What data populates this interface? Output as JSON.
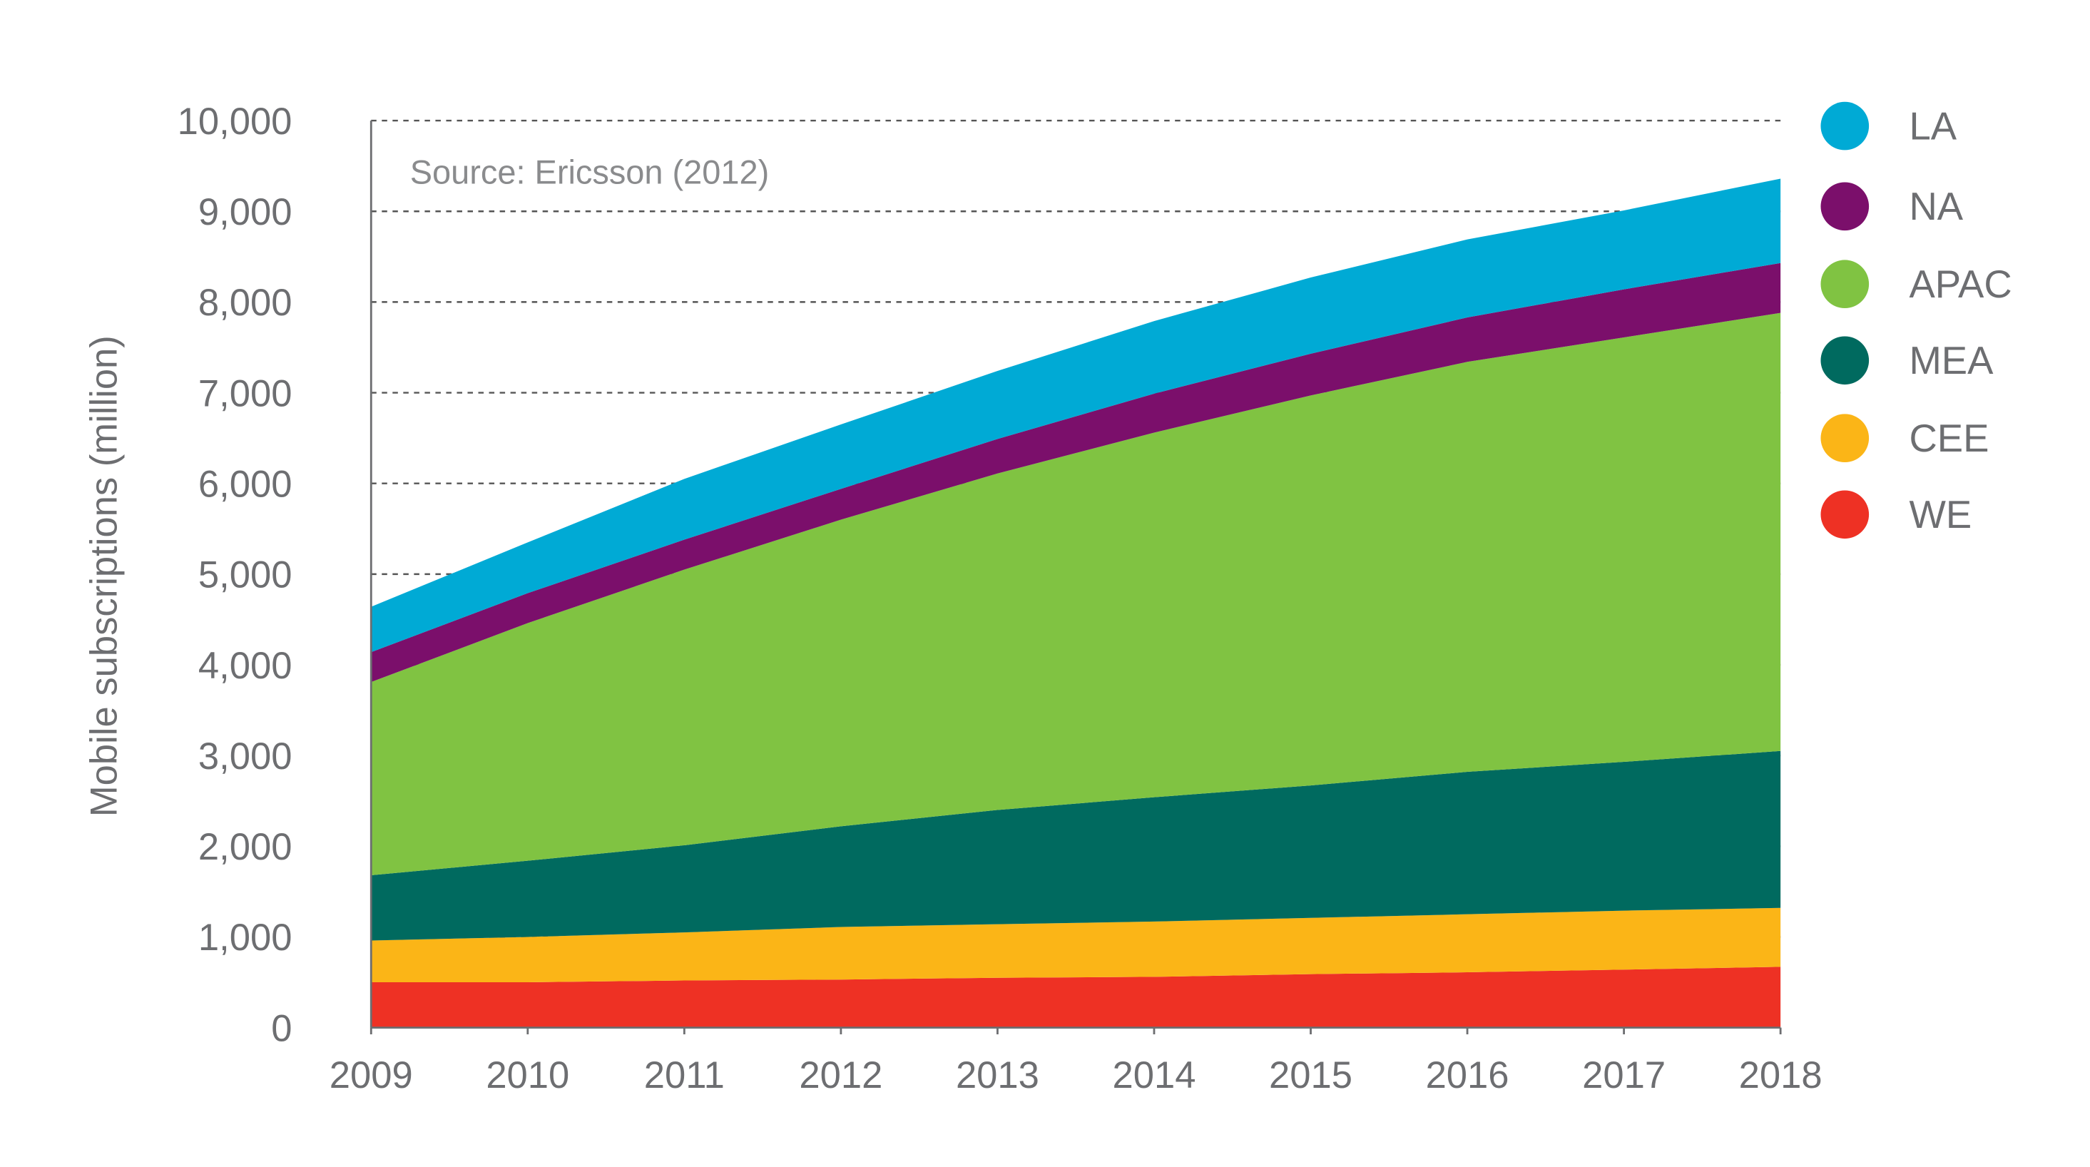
{
  "chart_data": {
    "type": "area",
    "stacked": true,
    "title": "",
    "annotation": "Source: Ericsson (2012)",
    "xlabel": "",
    "ylabel": "Mobile subscriptions (million)",
    "x": [
      2009,
      2010,
      2011,
      2012,
      2013,
      2014,
      2015,
      2016,
      2017,
      2018
    ],
    "ylim": [
      0,
      10000
    ],
    "yticks": [
      0,
      1000,
      2000,
      3000,
      4000,
      5000,
      6000,
      7000,
      8000,
      9000,
      10000
    ],
    "ytick_labels": [
      "0",
      "1,000",
      "2,000",
      "3,000",
      "4,000",
      "5,000",
      "6,000",
      "7,000",
      "8,000",
      "9,000",
      "10,000"
    ],
    "grid": "horizontal dashed",
    "legend_position": "right",
    "series": [
      {
        "name": "WE",
        "color": "#EE3124",
        "values": [
          500,
          500,
          520,
          530,
          550,
          560,
          590,
          610,
          640,
          670
        ]
      },
      {
        "name": "CEE",
        "color": "#FBB517",
        "values": [
          460,
          500,
          530,
          580,
          590,
          610,
          620,
          640,
          650,
          650
        ]
      },
      {
        "name": "MEA",
        "color": "#006A5F",
        "values": [
          720,
          840,
          960,
          1110,
          1260,
          1370,
          1460,
          1570,
          1640,
          1730
        ]
      },
      {
        "name": "APAC",
        "color": "#80C342",
        "values": [
          2130,
          2620,
          3040,
          3380,
          3710,
          4020,
          4300,
          4520,
          4680,
          4830
        ]
      },
      {
        "name": "NA",
        "color": "#7B0F6B",
        "values": [
          330,
          330,
          330,
          340,
          380,
          430,
          460,
          490,
          530,
          550
        ]
      },
      {
        "name": "LA",
        "color": "#00AAD5",
        "values": [
          500,
          560,
          670,
          710,
          750,
          800,
          840,
          860,
          870,
          930
        ]
      }
    ],
    "legend_order": [
      "LA",
      "NA",
      "APAC",
      "MEA",
      "CEE",
      "WE"
    ]
  }
}
